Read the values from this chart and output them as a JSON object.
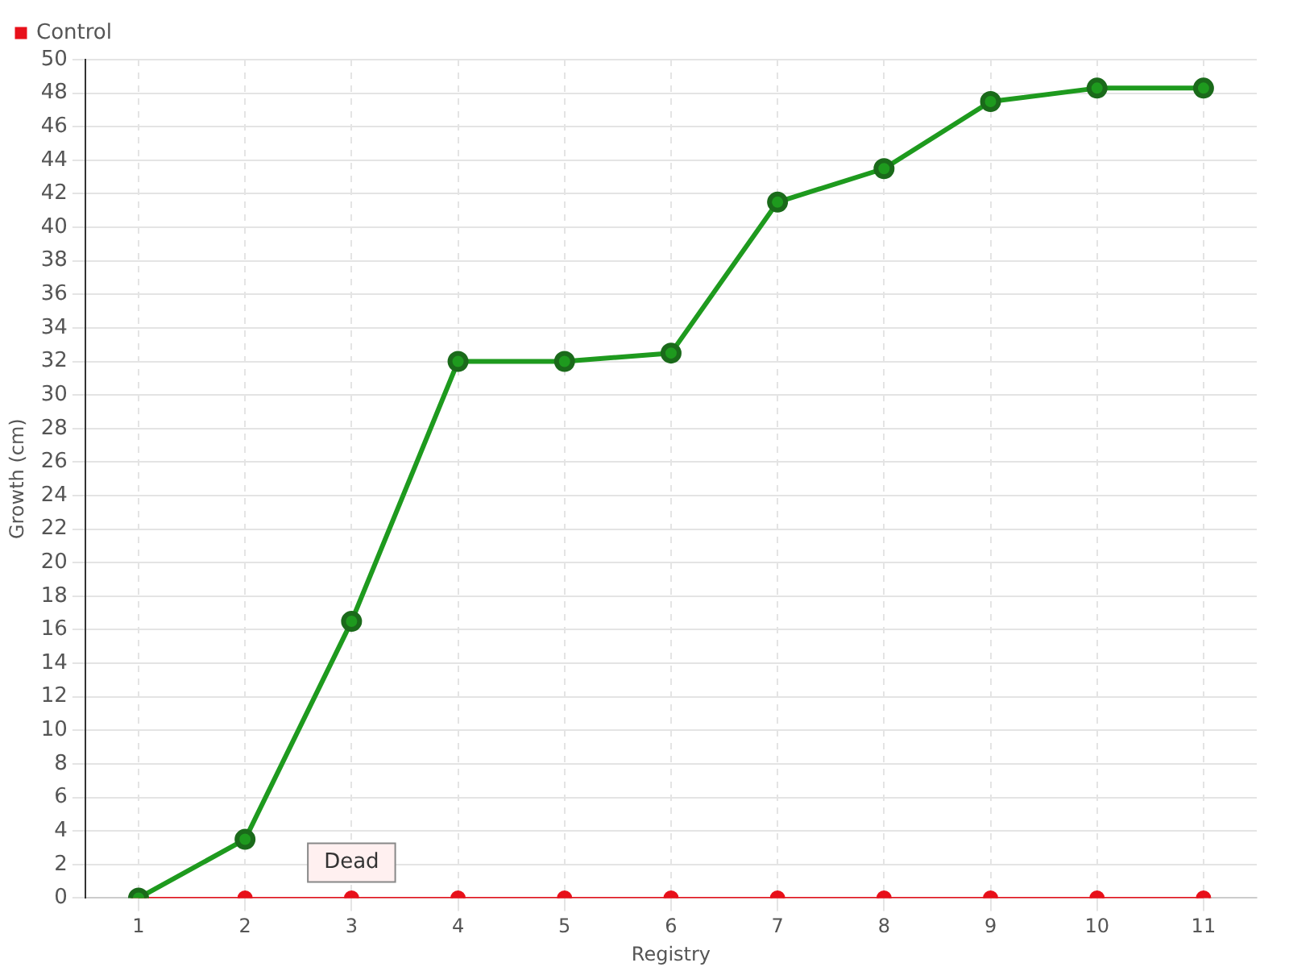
{
  "chart_data": {
    "type": "line",
    "xlabel": "Registry",
    "ylabel": "Growth (cm)",
    "categories": [
      "1",
      "2",
      "3",
      "4",
      "5",
      "6",
      "7",
      "8",
      "9",
      "10",
      "11"
    ],
    "series": [
      {
        "color": "#1e9a1e",
        "values": [
          0,
          3.5,
          16.5,
          32,
          32,
          32.5,
          41.5,
          43.5,
          47.5,
          48.3,
          48.3
        ]
      },
      {
        "name": "Control",
        "color": "#e8101a",
        "values": [
          0,
          0,
          0,
          0,
          0,
          0,
          0,
          0,
          0,
          0,
          0
        ]
      }
    ],
    "ylim": [
      0,
      50
    ],
    "yticks": [
      0,
      2,
      4,
      6,
      8,
      10,
      12,
      14,
      16,
      18,
      20,
      22,
      24,
      26,
      28,
      30,
      32,
      34,
      36,
      38,
      40,
      42,
      44,
      46,
      48,
      50
    ],
    "grid": true,
    "legend": "top left",
    "marker": "circle",
    "annotations": [
      {
        "text": "Dead",
        "x": "3",
        "y": 0
      }
    ]
  }
}
